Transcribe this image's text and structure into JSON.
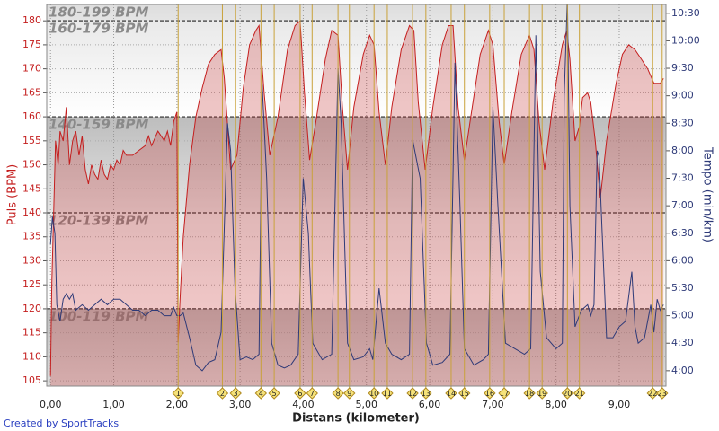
{
  "chart_data": {
    "type": "line",
    "x_label": "Distans (kilometer)",
    "y_label": "Puls (BPM)",
    "y2_label": "Tempo (min/km)",
    "credit": "Created by SportTracks",
    "xlim": [
      -0.06,
      9.74
    ],
    "xticks": [
      {
        "value": 0,
        "label": "0,00"
      },
      {
        "value": 1,
        "label": "1,00"
      },
      {
        "value": 2,
        "label": "2,00"
      },
      {
        "value": 3,
        "label": "3,00"
      },
      {
        "value": 4,
        "label": "4,00"
      },
      {
        "value": 5,
        "label": "5,00"
      },
      {
        "value": 6,
        "label": "6,00"
      },
      {
        "value": 7,
        "label": "7,00"
      },
      {
        "value": 8,
        "label": "8,00"
      },
      {
        "value": 9,
        "label": "9,00"
      }
    ],
    "ylim": [
      103.9,
      183.4
    ],
    "yticks": [
      105,
      110,
      115,
      120,
      125,
      130,
      135,
      140,
      145,
      150,
      155,
      160,
      165,
      170,
      175,
      180
    ],
    "y2lim": [
      3.72,
      10.66
    ],
    "y2ticks": [
      {
        "value": 4.0,
        "label": "4:00"
      },
      {
        "value": 4.5,
        "label": "4:30"
      },
      {
        "value": 5.0,
        "label": "5:00"
      },
      {
        "value": 5.5,
        "label": "5:30"
      },
      {
        "value": 6.0,
        "label": "6:00"
      },
      {
        "value": 6.5,
        "label": "6:30"
      },
      {
        "value": 7.0,
        "label": "7:00"
      },
      {
        "value": 7.5,
        "label": "7:30"
      },
      {
        "value": 8.0,
        "label": "8:00"
      },
      {
        "value": 8.5,
        "label": "8:30"
      },
      {
        "value": 9.0,
        "label": "9:00"
      },
      {
        "value": 9.5,
        "label": "9:30"
      },
      {
        "value": 10.0,
        "label": "10:00"
      },
      {
        "value": 10.5,
        "label": "10:30"
      }
    ],
    "grid": true,
    "zones": [
      {
        "name": "180-199 BPM",
        "from": 180,
        "to": 199
      },
      {
        "name": "160-179 BPM",
        "from": 160,
        "to": 180
      },
      {
        "name": "140-159 BPM",
        "from": 140,
        "to": 160
      },
      {
        "name": "120-139 BPM",
        "from": 120,
        "to": 140
      },
      {
        "name": "100-119 BPM",
        "from": 100,
        "to": 120
      }
    ],
    "laps": {
      "labels": [
        "1",
        "2",
        "3",
        "4",
        "5",
        "6",
        "7",
        "8",
        "9",
        "10",
        "11",
        "12",
        "13",
        "14",
        "15",
        "16",
        "17",
        "18",
        "19",
        "20",
        "21",
        "22",
        "23"
      ],
      "x": [
        2.02,
        2.72,
        2.93,
        3.33,
        3.54,
        3.95,
        4.14,
        4.55,
        4.73,
        5.12,
        5.33,
        5.73,
        5.94,
        6.34,
        6.55,
        6.95,
        7.18,
        7.58,
        7.78,
        8.18,
        8.37,
        9.53,
        9.68
      ]
    },
    "series": [
      {
        "color": "#c41e1e",
        "x": [
          0.0,
          0.02,
          0.05,
          0.08,
          0.12,
          0.15,
          0.2,
          0.25,
          0.3,
          0.35,
          0.4,
          0.45,
          0.5,
          0.55,
          0.6,
          0.65,
          0.7,
          0.75,
          0.8,
          0.85,
          0.9,
          0.95,
          1.0,
          1.05,
          1.1,
          1.15,
          1.2,
          1.3,
          1.4,
          1.5,
          1.55,
          1.6,
          1.7,
          1.8,
          1.85,
          1.9,
          1.95,
          2.0,
          2.02,
          2.05,
          2.1,
          2.2,
          2.3,
          2.4,
          2.5,
          2.6,
          2.7,
          2.75,
          2.85,
          2.95,
          3.05,
          3.15,
          3.25,
          3.3,
          3.38,
          3.47,
          3.6,
          3.75,
          3.87,
          3.95,
          4.02,
          4.1,
          4.2,
          4.35,
          4.45,
          4.55,
          4.62,
          4.7,
          4.8,
          4.95,
          5.05,
          5.12,
          5.2,
          5.3,
          5.4,
          5.55,
          5.68,
          5.75,
          5.82,
          5.93,
          6.05,
          6.2,
          6.3,
          6.37,
          6.45,
          6.55,
          6.65,
          6.8,
          6.93,
          7.0,
          7.1,
          7.18,
          7.3,
          7.45,
          7.58,
          7.65,
          7.73,
          7.82,
          7.95,
          8.1,
          8.17,
          8.22,
          8.3,
          8.37,
          8.42,
          8.5,
          8.55,
          8.62,
          8.7,
          8.8,
          8.95,
          9.05,
          9.15,
          9.25,
          9.35,
          9.45,
          9.55,
          9.65,
          9.7
        ],
        "values": [
          106,
          125,
          140,
          155,
          150,
          157,
          155,
          162,
          150,
          155,
          157,
          152,
          156,
          149,
          146,
          150,
          148,
          147,
          151,
          148,
          147,
          150,
          149,
          151,
          150,
          153,
          152,
          152,
          153,
          154,
          156,
          154,
          157,
          155,
          157,
          154,
          159,
          161,
          113,
          122,
          135,
          150,
          160,
          166,
          171,
          173,
          174,
          168,
          149,
          152,
          166,
          175,
          178,
          179,
          165,
          152,
          160,
          174,
          179,
          180,
          165,
          151,
          159,
          172,
          178,
          177,
          162,
          149,
          162,
          173,
          177,
          175,
          161,
          150,
          162,
          174,
          179,
          178,
          163,
          149,
          162,
          175,
          179,
          179,
          162,
          151,
          160,
          173,
          178,
          175,
          159,
          150,
          161,
          173,
          177,
          174,
          159,
          149,
          163,
          175,
          178,
          172,
          155,
          158,
          164,
          165,
          163,
          155,
          143,
          155,
          167,
          173,
          175,
          174,
          172,
          170,
          167,
          167,
          168
        ]
      },
      {
        "color": "#2e3a78",
        "axis": "y2",
        "x": [
          0.0,
          0.03,
          0.07,
          0.1,
          0.15,
          0.2,
          0.25,
          0.3,
          0.35,
          0.4,
          0.5,
          0.6,
          0.7,
          0.8,
          0.9,
          1.0,
          1.1,
          1.2,
          1.3,
          1.4,
          1.5,
          1.6,
          1.7,
          1.8,
          1.9,
          1.95,
          2.0,
          2.05,
          2.1,
          2.2,
          2.3,
          2.4,
          2.5,
          2.6,
          2.7,
          2.8,
          2.85,
          2.92,
          3.0,
          3.1,
          3.2,
          3.3,
          3.35,
          3.42,
          3.5,
          3.6,
          3.7,
          3.8,
          3.92,
          4.0,
          4.08,
          4.15,
          4.3,
          4.45,
          4.55,
          4.6,
          4.7,
          4.8,
          4.95,
          5.05,
          5.1,
          5.2,
          5.3,
          5.4,
          5.55,
          5.68,
          5.73,
          5.85,
          5.95,
          6.05,
          6.2,
          6.32,
          6.4,
          6.48,
          6.55,
          6.7,
          6.85,
          6.93,
          7.0,
          7.08,
          7.2,
          7.35,
          7.5,
          7.6,
          7.68,
          7.75,
          7.85,
          8.0,
          8.1,
          8.13,
          8.18,
          8.22,
          8.3,
          8.4,
          8.5,
          8.55,
          8.6,
          8.65,
          8.68,
          8.73,
          8.8,
          8.9,
          9.0,
          9.1,
          9.2,
          9.25,
          9.3,
          9.4,
          9.5,
          9.55,
          9.6,
          9.65,
          9.7
        ],
        "values": [
          6.3,
          6.8,
          6.5,
          5.2,
          4.9,
          5.3,
          5.4,
          5.3,
          5.4,
          5.1,
          5.2,
          5.1,
          5.2,
          5.3,
          5.2,
          5.3,
          5.3,
          5.2,
          5.1,
          5.1,
          5.0,
          5.1,
          5.1,
          5.0,
          5.0,
          5.15,
          5.0,
          5.0,
          5.05,
          4.6,
          4.1,
          4.0,
          4.15,
          4.2,
          4.7,
          8.5,
          8.0,
          5.5,
          4.2,
          4.25,
          4.2,
          4.3,
          9.2,
          7.5,
          4.5,
          4.1,
          4.05,
          4.1,
          4.3,
          7.5,
          6.5,
          4.5,
          4.2,
          4.3,
          9.5,
          8.5,
          4.5,
          4.2,
          4.25,
          4.4,
          4.2,
          5.5,
          4.5,
          4.3,
          4.2,
          4.3,
          8.2,
          7.5,
          4.5,
          4.1,
          4.15,
          4.3,
          9.6,
          7.0,
          4.4,
          4.1,
          4.2,
          4.3,
          8.8,
          7.0,
          4.5,
          4.4,
          4.3,
          4.4,
          10.1,
          5.8,
          4.6,
          4.4,
          4.5,
          9.0,
          10.8,
          7.0,
          4.8,
          5.1,
          5.2,
          5.0,
          5.2,
          8.0,
          7.9,
          6.5,
          4.6,
          4.6,
          4.8,
          4.9,
          5.8,
          4.8,
          4.5,
          4.6,
          5.2,
          4.7,
          5.3,
          5.1,
          5.2
        ]
      }
    ]
  }
}
